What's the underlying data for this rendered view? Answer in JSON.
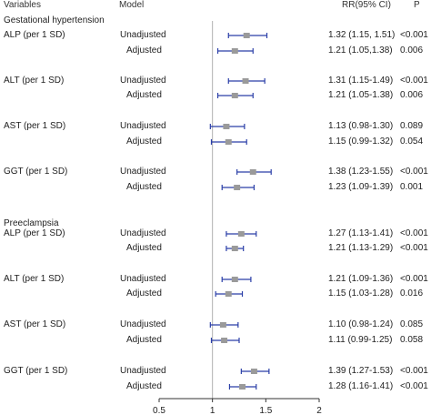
{
  "header": {
    "variables": "Variables",
    "model": "Model",
    "rr": "RR(95% CI)",
    "p": "P"
  },
  "sections": [
    {
      "title": "Gestational hypertension"
    },
    {
      "title": "Preeclampsia"
    }
  ],
  "chart_data": {
    "type": "forest",
    "reference_line": 1,
    "xlim": [
      0.5,
      2
    ],
    "x_ticks": [
      "0.5",
      "1",
      "1.5",
      "2"
    ],
    "rows": [
      {
        "section": "Gestational hypertension",
        "variable": "ALP (per 1 SD)",
        "model": "Unadjusted",
        "rr": 1.32,
        "lo": 1.15,
        "hi": 1.51,
        "rr_text": "1.32 (1.15, 1.51)",
        "p": "<0.001"
      },
      {
        "section": "Gestational hypertension",
        "variable": "",
        "model": "Adjusted",
        "rr": 1.21,
        "lo": 1.05,
        "hi": 1.38,
        "rr_text": "1.21 (1.05,1.38)",
        "p": "0.006"
      },
      {
        "section": "Gestational hypertension",
        "variable": "ALT (per 1 SD)",
        "model": "Unadjusted",
        "rr": 1.31,
        "lo": 1.15,
        "hi": 1.49,
        "rr_text": "1.31 (1.15-1.49)",
        "p": "<0.001"
      },
      {
        "section": "Gestational hypertension",
        "variable": "",
        "model": "Adjusted",
        "rr": 1.21,
        "lo": 1.05,
        "hi": 1.38,
        "rr_text": "1.21 (1.05-1.38)",
        "p": "0.006"
      },
      {
        "section": "Gestational hypertension",
        "variable": "AST (per 1 SD)",
        "model": "Unadjusted",
        "rr": 1.13,
        "lo": 0.98,
        "hi": 1.3,
        "rr_text": "1.13 (0.98-1.30)",
        "p": "0.089"
      },
      {
        "section": "Gestational hypertension",
        "variable": "",
        "model": "Adjusted",
        "rr": 1.15,
        "lo": 0.99,
        "hi": 1.32,
        "rr_text": "1.15 (0.99-1.32)",
        "p": "0.054"
      },
      {
        "section": "Gestational hypertension",
        "variable": "GGT (per 1 SD)",
        "model": "Unadjusted",
        "rr": 1.38,
        "lo": 1.23,
        "hi": 1.55,
        "rr_text": "1.38 (1.23-1.55)",
        "p": "<0.001"
      },
      {
        "section": "Gestational hypertension",
        "variable": "",
        "model": "Adjusted",
        "rr": 1.23,
        "lo": 1.09,
        "hi": 1.39,
        "rr_text": "1.23 (1.09-1.39)",
        "p": "0.001"
      },
      {
        "section": "Preeclampsia",
        "variable": "ALP (per 1 SD)",
        "model": "Unadjusted",
        "rr": 1.27,
        "lo": 1.13,
        "hi": 1.41,
        "rr_text": "1.27 (1.13-1.41)",
        "p": "<0.001"
      },
      {
        "section": "Preeclampsia",
        "variable": "",
        "model": "Adjusted",
        "rr": 1.21,
        "lo": 1.13,
        "hi": 1.29,
        "rr_text": "1.21 (1.13-1.29)",
        "p": "<0.001"
      },
      {
        "section": "Preeclampsia",
        "variable": "ALT (per 1 SD)",
        "model": "Unadjusted",
        "rr": 1.21,
        "lo": 1.09,
        "hi": 1.36,
        "rr_text": "1.21 (1.09-1.36)",
        "p": "<0.001"
      },
      {
        "section": "Preeclampsia",
        "variable": "",
        "model": "Adjusted",
        "rr": 1.15,
        "lo": 1.03,
        "hi": 1.28,
        "rr_text": "1.15 (1.03-1.28)",
        "p": "0.016"
      },
      {
        "section": "Preeclampsia",
        "variable": "AST (per 1 SD)",
        "model": "Unadjusted",
        "rr": 1.1,
        "lo": 0.98,
        "hi": 1.24,
        "rr_text": "1.10 (0.98-1.24)",
        "p": "0.085"
      },
      {
        "section": "Preeclampsia",
        "variable": "",
        "model": "Adjusted",
        "rr": 1.11,
        "lo": 0.99,
        "hi": 1.25,
        "rr_text": "1.11 (0.99-1.25)",
        "p": "0.058"
      },
      {
        "section": "Preeclampsia",
        "variable": "GGT (per 1 SD)",
        "model": "Unadjusted",
        "rr": 1.39,
        "lo": 1.27,
        "hi": 1.53,
        "rr_text": "1.39 (1.27-1.53)",
        "p": "<0.001"
      },
      {
        "section": "Preeclampsia",
        "variable": "",
        "model": "Adjusted",
        "rr": 1.28,
        "lo": 1.16,
        "hi": 1.41,
        "rr_text": "1.28 (1.16-1.41)",
        "p": "<0.001"
      }
    ]
  },
  "colors": {
    "ci_line": "#2b3fa8",
    "marker": "#9a9a9a",
    "reference_line": "#b0b0b0",
    "axis": "#333333"
  }
}
